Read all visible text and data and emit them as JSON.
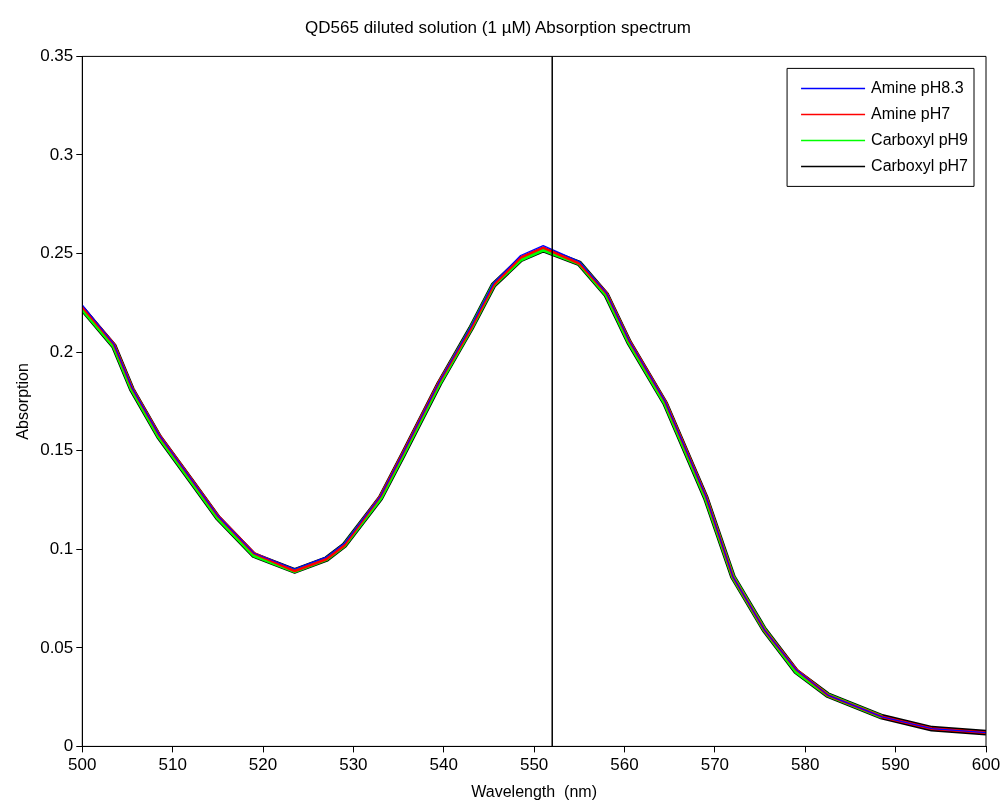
{
  "chart_data": {
    "type": "line",
    "title": "QD565 diluted solution (1 µM) Absorption spectrum",
    "xlabel": "Wavelength  (nm)",
    "ylabel": "Absorption",
    "xlim": [
      500,
      600
    ],
    "xticks": [
      500,
      510,
      520,
      530,
      540,
      550,
      560,
      570,
      580,
      590,
      600
    ],
    "ylim": [
      0,
      0.35
    ],
    "yticks": [
      0,
      0.05,
      0.1,
      0.15,
      0.2,
      0.25,
      0.3,
      0.35
    ],
    "grid": false,
    "legend": "top right",
    "marker": "none",
    "line_style": "solid",
    "ref_lines": [
      {
        "axis": "x",
        "value": 552,
        "color": "#000000"
      }
    ],
    "series": [
      {
        "name": "Amine pH8.3",
        "color": "#0000ff",
        "x": [
          500,
          503.5,
          505.5,
          508.5,
          512,
          515,
          519,
          523.5,
          527,
          529,
          533,
          535.5,
          539.5,
          543,
          545.5,
          548.5,
          551,
          555,
          558,
          560.5,
          564.5,
          569,
          572,
          575.5,
          579,
          582.5,
          588.5,
          594,
          600
        ],
        "values": [
          0.224,
          0.204,
          0.182,
          0.158,
          0.136,
          0.117,
          0.098,
          0.09,
          0.096,
          0.103,
          0.127,
          0.149,
          0.185,
          0.213,
          0.235,
          0.249,
          0.254,
          0.246,
          0.23,
          0.206,
          0.175,
          0.127,
          0.086,
          0.059,
          0.039,
          0.026,
          0.015,
          0.009,
          0.007
        ]
      },
      {
        "name": "Amine pH7",
        "color": "#ff0000",
        "x": [
          500,
          503.5,
          505.5,
          508.5,
          512,
          515,
          519,
          523.5,
          527,
          529,
          533,
          535.5,
          539.5,
          543,
          545.5,
          548.5,
          551,
          555,
          558,
          560.5,
          564.5,
          569,
          572,
          575.5,
          579,
          582.5,
          588.5,
          594,
          600
        ],
        "values": [
          0.223,
          0.204,
          0.182,
          0.158,
          0.136,
          0.117,
          0.098,
          0.089,
          0.095,
          0.102,
          0.127,
          0.149,
          0.185,
          0.212,
          0.234,
          0.248,
          0.253,
          0.245,
          0.23,
          0.206,
          0.175,
          0.127,
          0.086,
          0.059,
          0.039,
          0.026,
          0.015,
          0.009,
          0.007
        ]
      },
      {
        "name": "Carboxyl pH9",
        "color": "#00ff00",
        "x": [
          500,
          503.5,
          505.5,
          508.5,
          512,
          515,
          519,
          523.5,
          527,
          529,
          533,
          535.5,
          539.5,
          543,
          545.5,
          548.5,
          551,
          555,
          558,
          560.5,
          564.5,
          569,
          572,
          575.5,
          579,
          582.5,
          588.5
        ],
        "values": [
          0.222,
          0.203,
          0.181,
          0.157,
          0.135,
          0.116,
          0.097,
          0.089,
          0.095,
          0.102,
          0.126,
          0.148,
          0.184,
          0.212,
          0.234,
          0.247,
          0.252,
          0.245,
          0.229,
          0.205,
          0.174,
          0.126,
          0.086,
          0.059,
          0.038,
          0.026,
          0.015
        ]
      },
      {
        "name": "Carboxyl pH7",
        "color": "#000000",
        "x": [
          500,
          503.5,
          505.5,
          508.5,
          512,
          515,
          519,
          523.5,
          527,
          529,
          533,
          535.5,
          539.5,
          543,
          545.5,
          548.5,
          551,
          555,
          558,
          560.5,
          564.5,
          569,
          572,
          575.5,
          579,
          582.5,
          588.5,
          594,
          600
        ],
        "values": [
          0.222,
          0.203,
          0.181,
          0.157,
          0.135,
          0.116,
          0.097,
          0.089,
          0.095,
          0.102,
          0.126,
          0.148,
          0.184,
          0.212,
          0.234,
          0.247,
          0.252,
          0.245,
          0.229,
          0.205,
          0.174,
          0.126,
          0.086,
          0.059,
          0.038,
          0.026,
          0.015,
          0.009,
          0.007
        ]
      }
    ]
  }
}
